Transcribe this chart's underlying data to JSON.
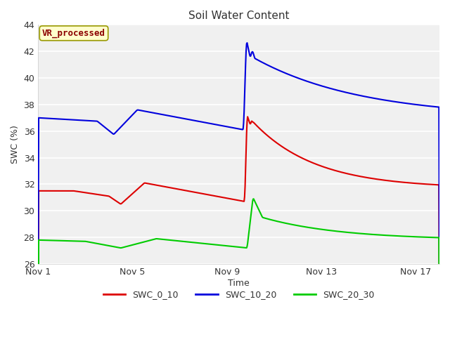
{
  "title": "Soil Water Content",
  "xlabel": "Time",
  "ylabel": "SWC (%)",
  "ylim": [
    26,
    44
  ],
  "yticks": [
    26,
    28,
    30,
    32,
    34,
    36,
    38,
    40,
    42,
    44
  ],
  "xtick_labels": [
    "Nov 1",
    "Nov 5",
    "Nov 9",
    "Nov 13",
    "Nov 17"
  ],
  "xtick_positions": [
    0,
    4,
    8,
    12,
    16
  ],
  "bg_color": "#ffffff",
  "axes_bg_color": "#f0f0f0",
  "grid_color": "#ffffff",
  "annotation_text": "VR_processed",
  "annotation_box_color": "#ffffcc",
  "annotation_text_color": "#8b0000",
  "legend_entries": [
    "SWC_0_10",
    "SWC_10_20",
    "SWC_20_30"
  ],
  "colors": {
    "SWC_0_10": "#dd0000",
    "SWC_10_20": "#0000dd",
    "SWC_20_30": "#00cc00"
  },
  "line_width": 1.5
}
